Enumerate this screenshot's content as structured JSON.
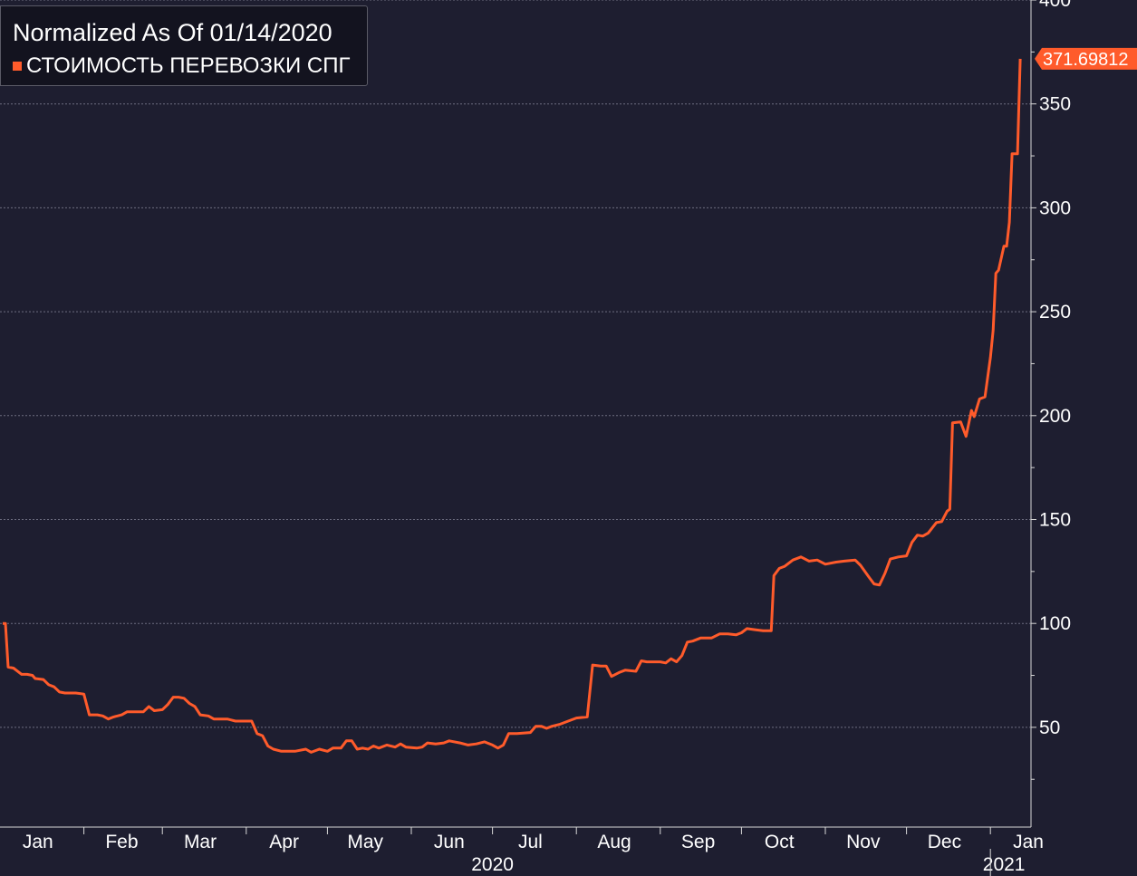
{
  "legend": {
    "title": "Normalized As Of 01/14/2020",
    "series_label": "СТОИМОСТЬ ПЕРЕВОЗКИ СПГ"
  },
  "colors": {
    "background": "#1e1e30",
    "series": "#ff5b2b",
    "grid": "#6d6d80",
    "axis": "#d8d8d8",
    "text": "#ffffff"
  },
  "chart_data": {
    "type": "line",
    "title": "Normalized As Of 01/14/2020",
    "xlabel": "",
    "ylabel": "",
    "ylim": [
      2,
      400
    ],
    "xlim": [
      "2020-01-01",
      "2021-01-16"
    ],
    "yticks": [
      50,
      100,
      150,
      200,
      250,
      300,
      350,
      400
    ],
    "x_month_ticks": [
      {
        "label": "Jan",
        "date": "2020-01-15"
      },
      {
        "label": "Feb",
        "date": "2020-02-15"
      },
      {
        "label": "Mar",
        "date": "2020-03-15"
      },
      {
        "label": "Apr",
        "date": "2020-04-15"
      },
      {
        "label": "May",
        "date": "2020-05-15"
      },
      {
        "label": "Jun",
        "date": "2020-06-15"
      },
      {
        "label": "Jul",
        "date": "2020-07-15"
      },
      {
        "label": "Aug",
        "date": "2020-08-15"
      },
      {
        "label": "Sep",
        "date": "2020-09-15"
      },
      {
        "label": "Oct",
        "date": "2020-10-15"
      },
      {
        "label": "Nov",
        "date": "2020-11-15"
      },
      {
        "label": "Dec",
        "date": "2020-12-15"
      },
      {
        "label": "Jan",
        "date": "2021-01-15"
      }
    ],
    "year_labels": [
      {
        "label": "2020",
        "date": "2020-07-01"
      },
      {
        "label": "2021",
        "date": "2021-01-06"
      }
    ],
    "grid": true,
    "legend_position": "top-left",
    "last_value_label": "371.69812",
    "series": [
      {
        "name": "СТОИМОСТЬ ПЕРЕВОЗКИ СПГ",
        "color": "#ff5b2b",
        "points": [
          [
            "2020-01-02",
            100
          ],
          [
            "2020-01-03",
            100
          ],
          [
            "2020-01-04",
            79
          ],
          [
            "2020-01-06",
            78.5
          ],
          [
            "2020-01-07",
            77.5
          ],
          [
            "2020-01-09",
            75.5
          ],
          [
            "2020-01-11",
            75.5
          ],
          [
            "2020-01-13",
            75
          ],
          [
            "2020-01-14",
            73.5
          ],
          [
            "2020-01-17",
            73
          ],
          [
            "2020-01-19",
            70.5
          ],
          [
            "2020-01-21",
            69.5
          ],
          [
            "2020-01-23",
            67
          ],
          [
            "2020-01-25",
            66.5
          ],
          [
            "2020-01-29",
            66.5
          ],
          [
            "2020-02-01",
            66
          ],
          [
            "2020-02-03",
            56
          ],
          [
            "2020-02-06",
            56
          ],
          [
            "2020-02-08",
            55.5
          ],
          [
            "2020-02-10",
            54
          ],
          [
            "2020-02-12",
            55
          ],
          [
            "2020-02-15",
            56
          ],
          [
            "2020-02-17",
            57.5
          ],
          [
            "2020-02-20",
            57.5
          ],
          [
            "2020-02-23",
            57.5
          ],
          [
            "2020-02-25",
            60
          ],
          [
            "2020-02-27",
            58
          ],
          [
            "2020-03-01",
            58.5
          ],
          [
            "2020-03-03",
            61
          ],
          [
            "2020-03-05",
            64.5
          ],
          [
            "2020-03-07",
            64.5
          ],
          [
            "2020-03-09",
            64
          ],
          [
            "2020-03-11",
            61.5
          ],
          [
            "2020-03-13",
            60
          ],
          [
            "2020-03-15",
            56
          ],
          [
            "2020-03-18",
            55.5
          ],
          [
            "2020-03-20",
            54
          ],
          [
            "2020-03-25",
            54
          ],
          [
            "2020-03-28",
            53
          ],
          [
            "2020-04-03",
            53
          ],
          [
            "2020-04-05",
            47
          ],
          [
            "2020-04-07",
            46
          ],
          [
            "2020-04-09",
            41
          ],
          [
            "2020-04-11",
            39.5
          ],
          [
            "2020-04-14",
            38.5
          ],
          [
            "2020-04-19",
            38.5
          ],
          [
            "2020-04-23",
            39.5
          ],
          [
            "2020-04-25",
            38
          ],
          [
            "2020-04-28",
            39.5
          ],
          [
            "2020-05-01",
            38.5
          ],
          [
            "2020-05-03",
            40
          ],
          [
            "2020-05-06",
            40
          ],
          [
            "2020-05-08",
            43.5
          ],
          [
            "2020-05-10",
            43.5
          ],
          [
            "2020-05-12",
            39.5
          ],
          [
            "2020-05-14",
            40
          ],
          [
            "2020-05-16",
            39.5
          ],
          [
            "2020-05-18",
            41
          ],
          [
            "2020-05-20",
            40
          ],
          [
            "2020-05-23",
            41.5
          ],
          [
            "2020-05-26",
            40.5
          ],
          [
            "2020-05-28",
            42
          ],
          [
            "2020-05-30",
            40.5
          ],
          [
            "2020-06-03",
            40
          ],
          [
            "2020-06-05",
            40.5
          ],
          [
            "2020-06-07",
            42.5
          ],
          [
            "2020-06-10",
            42
          ],
          [
            "2020-06-13",
            42.5
          ],
          [
            "2020-06-15",
            43.5
          ],
          [
            "2020-06-19",
            42.5
          ],
          [
            "2020-06-22",
            41.5
          ],
          [
            "2020-06-25",
            42
          ],
          [
            "2020-06-28",
            43
          ],
          [
            "2020-07-01",
            41.5
          ],
          [
            "2020-07-03",
            40
          ],
          [
            "2020-07-05",
            41.5
          ],
          [
            "2020-07-07",
            47
          ],
          [
            "2020-07-10",
            47
          ],
          [
            "2020-07-15",
            47.5
          ],
          [
            "2020-07-17",
            50.5
          ],
          [
            "2020-07-19",
            50.5
          ],
          [
            "2020-07-21",
            49.5
          ],
          [
            "2020-07-23",
            50.5
          ],
          [
            "2020-07-26",
            51.5
          ],
          [
            "2020-07-29",
            53
          ],
          [
            "2020-08-01",
            54.5
          ],
          [
            "2020-08-05",
            55
          ],
          [
            "2020-08-07",
            80
          ],
          [
            "2020-08-10",
            79.5
          ],
          [
            "2020-08-12",
            79.5
          ],
          [
            "2020-08-14",
            74.5
          ],
          [
            "2020-08-17",
            76.5
          ],
          [
            "2020-08-19",
            77.5
          ],
          [
            "2020-08-23",
            77
          ],
          [
            "2020-08-25",
            82
          ],
          [
            "2020-08-27",
            81.5
          ],
          [
            "2020-09-01",
            81.5
          ],
          [
            "2020-09-03",
            81
          ],
          [
            "2020-09-05",
            83
          ],
          [
            "2020-09-07",
            81.5
          ],
          [
            "2020-09-09",
            84.5
          ],
          [
            "2020-09-11",
            91
          ],
          [
            "2020-09-13",
            91.5
          ],
          [
            "2020-09-16",
            93
          ],
          [
            "2020-09-20",
            93
          ],
          [
            "2020-09-23",
            95
          ],
          [
            "2020-09-26",
            95
          ],
          [
            "2020-09-29",
            94.5
          ],
          [
            "2020-10-01",
            95.5
          ],
          [
            "2020-10-03",
            97.5
          ],
          [
            "2020-10-06",
            97
          ],
          [
            "2020-10-09",
            96.5
          ],
          [
            "2020-10-12",
            96.5
          ],
          [
            "2020-10-13",
            123
          ],
          [
            "2020-10-15",
            126.5
          ],
          [
            "2020-10-17",
            127.5
          ],
          [
            "2020-10-20",
            130.5
          ],
          [
            "2020-10-23",
            132
          ],
          [
            "2020-10-26",
            130
          ],
          [
            "2020-10-29",
            130.5
          ],
          [
            "2020-11-01",
            128.5
          ],
          [
            "2020-11-05",
            129.5
          ],
          [
            "2020-11-08",
            130
          ],
          [
            "2020-11-12",
            130.5
          ],
          [
            "2020-11-14",
            128
          ],
          [
            "2020-11-17",
            122.5
          ],
          [
            "2020-11-19",
            119
          ],
          [
            "2020-11-21",
            118.5
          ],
          [
            "2020-11-23",
            124
          ],
          [
            "2020-11-25",
            131
          ],
          [
            "2020-11-28",
            132
          ],
          [
            "2020-12-01",
            132.5
          ],
          [
            "2020-12-03",
            139
          ],
          [
            "2020-12-05",
            142.5
          ],
          [
            "2020-12-07",
            142
          ],
          [
            "2020-12-09",
            143.5
          ],
          [
            "2020-12-12",
            148.5
          ],
          [
            "2020-12-14",
            149
          ],
          [
            "2020-12-16",
            154
          ],
          [
            "2020-12-17",
            155
          ],
          [
            "2020-12-18",
            196.5
          ],
          [
            "2020-12-21",
            197
          ],
          [
            "2020-12-23",
            190
          ],
          [
            "2020-12-25",
            202.5
          ],
          [
            "2020-12-26",
            199.5
          ],
          [
            "2020-12-28",
            208
          ],
          [
            "2020-12-30",
            209
          ],
          [
            "2021-01-01",
            228
          ],
          [
            "2021-01-02",
            241
          ],
          [
            "2021-01-03",
            268.5
          ],
          [
            "2021-01-04",
            270
          ],
          [
            "2021-01-06",
            281.5
          ],
          [
            "2021-01-07",
            281.5
          ],
          [
            "2021-01-08",
            293
          ],
          [
            "2021-01-09",
            326
          ],
          [
            "2021-01-11",
            326
          ],
          [
            "2021-01-12",
            371.69812
          ]
        ]
      }
    ]
  }
}
